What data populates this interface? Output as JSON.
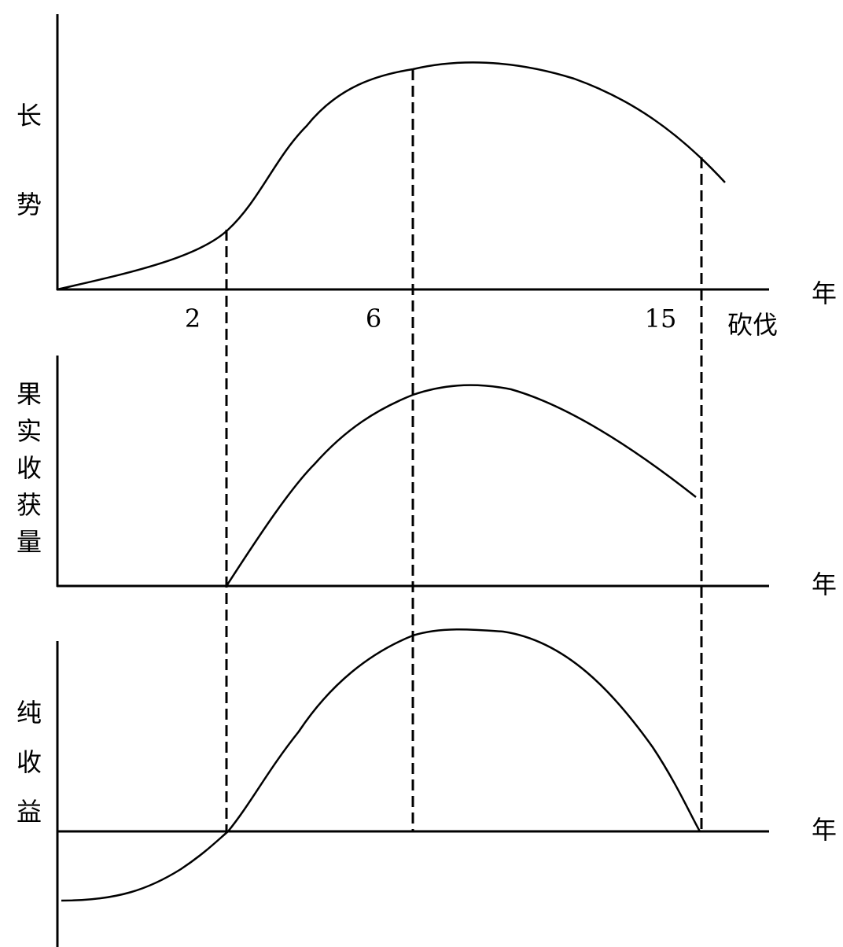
{
  "panels": [
    {
      "y_label": "长势",
      "x_label": "年"
    },
    {
      "y_label": "果实收获量",
      "x_label": "年"
    },
    {
      "y_label": "纯收益",
      "x_label": "年"
    }
  ],
  "x_ticks": [
    "2",
    "6",
    "15"
  ],
  "cut_label": "砍伐"
}
